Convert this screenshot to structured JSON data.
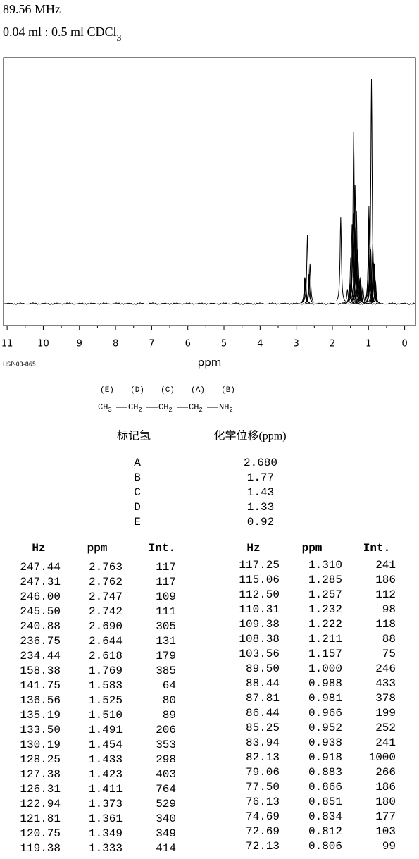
{
  "header": {
    "frequency": "89.56 MHz",
    "sample": "0.04 ml : 0.5 ml CDCl",
    "sample_subscript": "3"
  },
  "chart_data": {
    "type": "spectrum",
    "xlim": [
      11.1,
      -0.3
    ],
    "xticks": [
      11,
      10,
      9,
      8,
      7,
      6,
      5,
      4,
      3,
      2,
      1,
      0
    ],
    "x_label": "ppm",
    "code": "HSP-03-865"
  },
  "structure": {
    "labels": [
      "(E)",
      "(D)",
      "(C)",
      "(A)",
      "(B)"
    ],
    "groups": [
      {
        "text": "CH",
        "sub": "3"
      },
      {
        "text": "CH",
        "sub": "2"
      },
      {
        "text": "CH",
        "sub": "2"
      },
      {
        "text": "CH",
        "sub": "2"
      },
      {
        "text": "NH",
        "sub": "2"
      }
    ]
  },
  "assignment": {
    "headers": [
      "标记氢",
      "化学位移(ppm)"
    ],
    "rows": [
      [
        "A",
        "2.680"
      ],
      [
        "B",
        "1.77"
      ],
      [
        "C",
        "1.43"
      ],
      [
        "D",
        "1.33"
      ],
      [
        "E",
        "0.92"
      ]
    ]
  },
  "peaks": {
    "headers": [
      "Hz",
      "ppm",
      "Int."
    ],
    "rows": [
      [
        "247.44",
        2.763,
        117
      ],
      [
        "247.31",
        2.762,
        117
      ],
      [
        "246.00",
        2.747,
        109
      ],
      [
        "245.50",
        2.742,
        111
      ],
      [
        "240.88",
        {
          "value": 2.69,
          "label": "2.690"
        },
        305
      ],
      [
        "236.75",
        2.644,
        131
      ],
      [
        "234.44",
        2.618,
        179
      ],
      [
        "158.38",
        1.769,
        385
      ],
      [
        "141.75",
        1.583,
        64
      ],
      [
        "136.56",
        1.525,
        80
      ],
      [
        "135.19",
        {
          "value": 1.51,
          "label": "1.510"
        },
        89
      ],
      [
        "133.50",
        1.491,
        206
      ],
      [
        "130.19",
        1.454,
        353
      ],
      [
        "128.25",
        1.433,
        298
      ],
      [
        "127.38",
        1.423,
        403
      ],
      [
        "126.31",
        1.411,
        764
      ],
      [
        "122.94",
        1.373,
        529
      ],
      [
        "121.81",
        1.361,
        340
      ],
      [
        "120.75",
        1.349,
        349
      ],
      [
        "119.38",
        1.333,
        414
      ],
      [
        "117.25",
        {
          "value": 1.31,
          "label": "1.310"
        },
        241
      ],
      [
        "115.06",
        1.285,
        186
      ],
      [
        "112.50",
        1.257,
        112
      ],
      [
        "110.31",
        1.232,
        98
      ],
      [
        "109.38",
        1.222,
        118
      ],
      [
        "108.38",
        1.211,
        88
      ],
      [
        "103.56",
        1.157,
        75
      ],
      [
        "89.50",
        {
          "value": 1,
          "label": "1.000"
        },
        246
      ],
      [
        "88.44",
        0.988,
        433
      ],
      [
        "87.81",
        0.981,
        378
      ],
      [
        "86.44",
        0.966,
        199
      ],
      [
        "85.25",
        0.952,
        252
      ],
      [
        "83.94",
        0.938,
        241
      ],
      [
        "82.13",
        0.918,
        1000
      ],
      [
        "79.06",
        0.883,
        266
      ],
      [
        "77.50",
        0.866,
        186
      ],
      [
        "76.13",
        0.851,
        180
      ],
      [
        "74.69",
        0.834,
        177
      ],
      [
        "72.69",
        0.812,
        103
      ],
      [
        "72.13",
        0.806,
        99
      ]
    ]
  }
}
